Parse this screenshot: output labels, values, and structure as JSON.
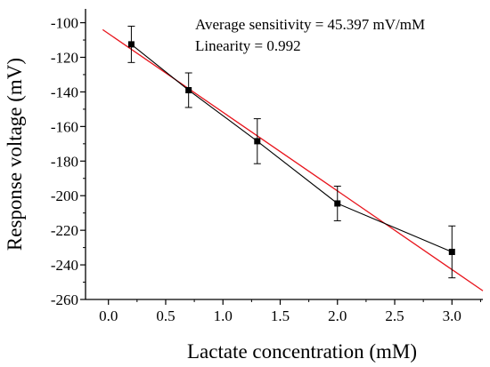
{
  "chart_data": {
    "type": "scatter",
    "xlabel": "Lactate concentration (mM)",
    "ylabel": "Response voltage (mV)",
    "xlim": [
      -0.2,
      3.27
    ],
    "ylim": [
      -260,
      -92
    ],
    "x_ticks": [
      "0.0",
      "0.5",
      "1.0",
      "1.5",
      "2.0",
      "2.5",
      "3.0"
    ],
    "y_ticks": [
      "-100",
      "-120",
      "-140",
      "-160",
      "-180",
      "-200",
      "-220",
      "-240",
      "-260"
    ],
    "grid": false,
    "series": [
      {
        "style": "points with connecting line and error bars",
        "color": "#000000",
        "x": [
          0.2,
          0.7,
          1.3,
          2.0,
          3.0
        ],
        "y": [
          -112.5,
          -139,
          -168.5,
          -204.5,
          -232.5
        ],
        "error": [
          10.5,
          10,
          13,
          10,
          15
        ]
      },
      {
        "style": "linear fit",
        "color": "#e8141c",
        "x": [
          -0.05,
          3.27
        ],
        "y": [
          -104,
          -255
        ]
      }
    ],
    "annotations": [
      "Average sensitivity = 45.397 mV/mM",
      "Linearity = 0.992"
    ]
  }
}
